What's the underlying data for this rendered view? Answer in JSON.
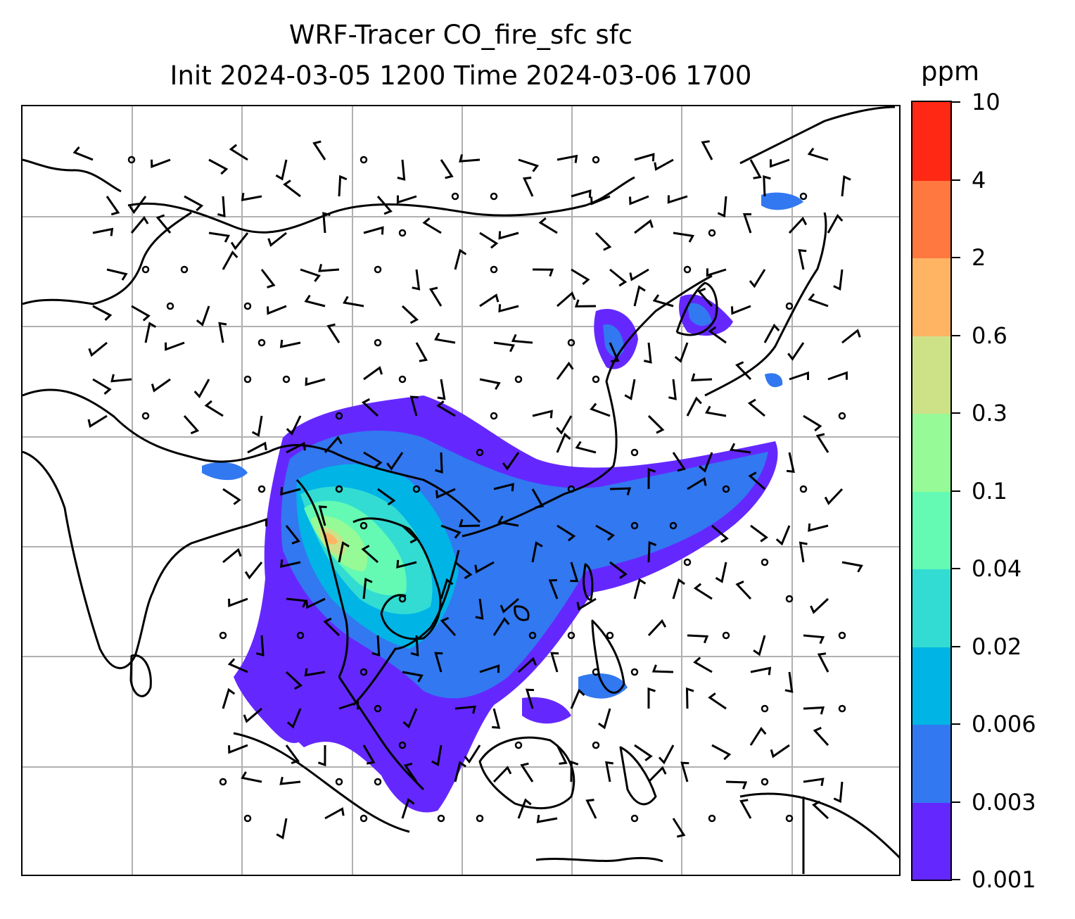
{
  "title": {
    "line1": "WRF-Tracer CO_fire_sfc sfc",
    "line2": "Init 2024-03-05 1200 Time 2024-03-06 1700"
  },
  "colorbar": {
    "unit": "ppm",
    "ticks": [
      "0.001",
      "0.003",
      "0.006",
      "0.02",
      "0.04",
      "0.1",
      "0.3",
      "0.6",
      "2",
      "4",
      "10"
    ],
    "colors": [
      "#6428ff",
      "#3278f0",
      "#00b4e6",
      "#32dcd2",
      "#64fab4",
      "#96fa96",
      "#cde187",
      "#ffb464",
      "#ff7840",
      "#ff2814"
    ]
  },
  "map": {
    "gridlines": true,
    "gridline_color": "#b0b0b0",
    "coastline_color": "#000000",
    "field": "CO_fire_sfc",
    "wind_symbols": "barbs"
  }
}
